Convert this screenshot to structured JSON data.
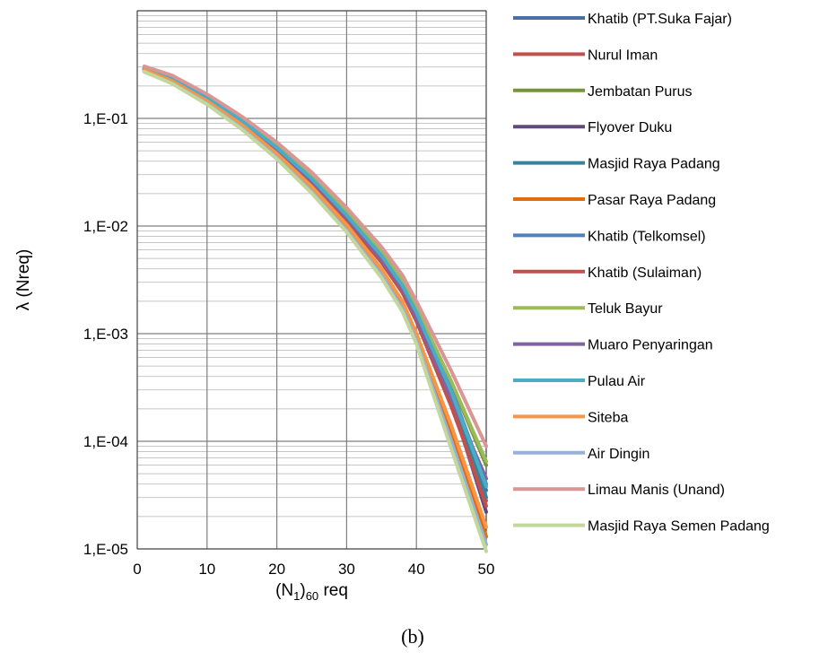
{
  "chart_data": {
    "type": "line",
    "title": "",
    "xlabel": {
      "base": "(N",
      "sub1": "1",
      "mid": ")",
      "sub2": "60",
      "tail": " req"
    },
    "ylabel": "λ (Nreq)",
    "caption": "(b)",
    "x_scale": "linear",
    "y_scale": "log",
    "xlim": [
      0,
      50
    ],
    "ylim": [
      1e-05,
      1
    ],
    "x_ticks": [
      0,
      10,
      20,
      30,
      40,
      50
    ],
    "x_tick_labels": [
      "0",
      "10",
      "20",
      "30",
      "40",
      "50"
    ],
    "y_ticks": [
      0.1,
      0.01,
      0.001,
      0.0001,
      1e-05
    ],
    "y_tick_labels": [
      "1,E-01",
      "1,E-02",
      "1,E-03",
      "1,E-04",
      "1,E-05"
    ],
    "grid": true,
    "legend_position": "right",
    "x": [
      1,
      5,
      10,
      15,
      20,
      25,
      30,
      35,
      38,
      40,
      45,
      50
    ],
    "series": [
      {
        "name": "Khatib (PT.Suka Fajar)",
        "color": "#4a6fa5",
        "values": [
          0.29,
          0.235,
          0.155,
          0.095,
          0.053,
          0.027,
          0.0125,
          0.0052,
          0.0028,
          0.00155,
          0.00028,
          3.5e-05
        ]
      },
      {
        "name": "Nurul Iman",
        "color": "#c0504d",
        "values": [
          0.285,
          0.225,
          0.148,
          0.089,
          0.049,
          0.0245,
          0.0112,
          0.0046,
          0.0024,
          0.0013,
          0.00021,
          2.8e-05
        ]
      },
      {
        "name": "Jembatan Purus",
        "color": "#77933c",
        "values": [
          0.292,
          0.238,
          0.158,
          0.097,
          0.055,
          0.0285,
          0.0132,
          0.0056,
          0.003,
          0.0017,
          0.00035,
          6e-05
        ]
      },
      {
        "name": "Flyover Duku",
        "color": "#604a7b",
        "values": [
          0.288,
          0.23,
          0.152,
          0.092,
          0.051,
          0.026,
          0.0118,
          0.0049,
          0.0026,
          0.0014,
          0.00024,
          2.2e-05
        ]
      },
      {
        "name": "Masjid Raya Padang",
        "color": "#31859c",
        "values": [
          0.29,
          0.232,
          0.154,
          0.094,
          0.052,
          0.0265,
          0.0121,
          0.005,
          0.0027,
          0.00145,
          0.00026,
          3e-05
        ]
      },
      {
        "name": "Pasar Raya Padang",
        "color": "#e46c0a",
        "values": [
          0.28,
          0.22,
          0.143,
          0.085,
          0.046,
          0.0225,
          0.0099,
          0.0038,
          0.0019,
          0.00095,
          0.00012,
          1.3e-05
        ]
      },
      {
        "name": "Khatib (Telkomsel)",
        "color": "#4f81bd",
        "values": [
          0.292,
          0.237,
          0.157,
          0.096,
          0.054,
          0.0278,
          0.0128,
          0.0054,
          0.0029,
          0.0016,
          0.0003,
          4e-05
        ]
      },
      {
        "name": "Khatib (Sulaiman)",
        "color": "#c0504d",
        "values": [
          0.287,
          0.228,
          0.15,
          0.091,
          0.05,
          0.0252,
          0.0114,
          0.0047,
          0.0025,
          0.00135,
          0.00022,
          2.5e-05
        ]
      },
      {
        "name": "Teluk Bayur",
        "color": "#9bbb59",
        "values": [
          0.293,
          0.24,
          0.16,
          0.098,
          0.056,
          0.029,
          0.0135,
          0.0057,
          0.0031,
          0.00172,
          0.00036,
          6.5e-05
        ]
      },
      {
        "name": "Muaro Penyaringan",
        "color": "#8064a2",
        "values": [
          0.289,
          0.231,
          0.153,
          0.093,
          0.0515,
          0.0262,
          0.012,
          0.0049,
          0.0026,
          0.0014,
          0.00025,
          4.5e-05
        ]
      },
      {
        "name": "Pulau Air",
        "color": "#4bacc6",
        "values": [
          0.291,
          0.234,
          0.156,
          0.095,
          0.0535,
          0.0275,
          0.0126,
          0.0053,
          0.0028,
          0.00158,
          0.00029,
          3.8e-05
        ]
      },
      {
        "name": "Siteba",
        "color": "#f79646",
        "values": [
          0.282,
          0.222,
          0.145,
          0.087,
          0.047,
          0.0232,
          0.0103,
          0.004,
          0.002,
          0.001,
          0.00014,
          1.6e-05
        ]
      },
      {
        "name": "Air Dingin",
        "color": "#95b3d7",
        "values": [
          0.27,
          0.212,
          0.137,
          0.081,
          0.043,
          0.0208,
          0.0091,
          0.0035,
          0.0017,
          0.00085,
          0.0001,
          1.1e-05
        ]
      },
      {
        "name": "Limau Manis (Unand)",
        "color": "#d99694",
        "values": [
          0.305,
          0.25,
          0.168,
          0.104,
          0.06,
          0.0315,
          0.0148,
          0.0064,
          0.0035,
          0.002,
          0.00045,
          9e-05
        ]
      },
      {
        "name": "Masjid Raya Semen Padang",
        "color": "#c3d69b",
        "values": [
          0.272,
          0.21,
          0.135,
          0.079,
          0.042,
          0.0202,
          0.0088,
          0.0033,
          0.0016,
          0.0008,
          8.5e-05,
          9.5e-06
        ]
      }
    ]
  }
}
